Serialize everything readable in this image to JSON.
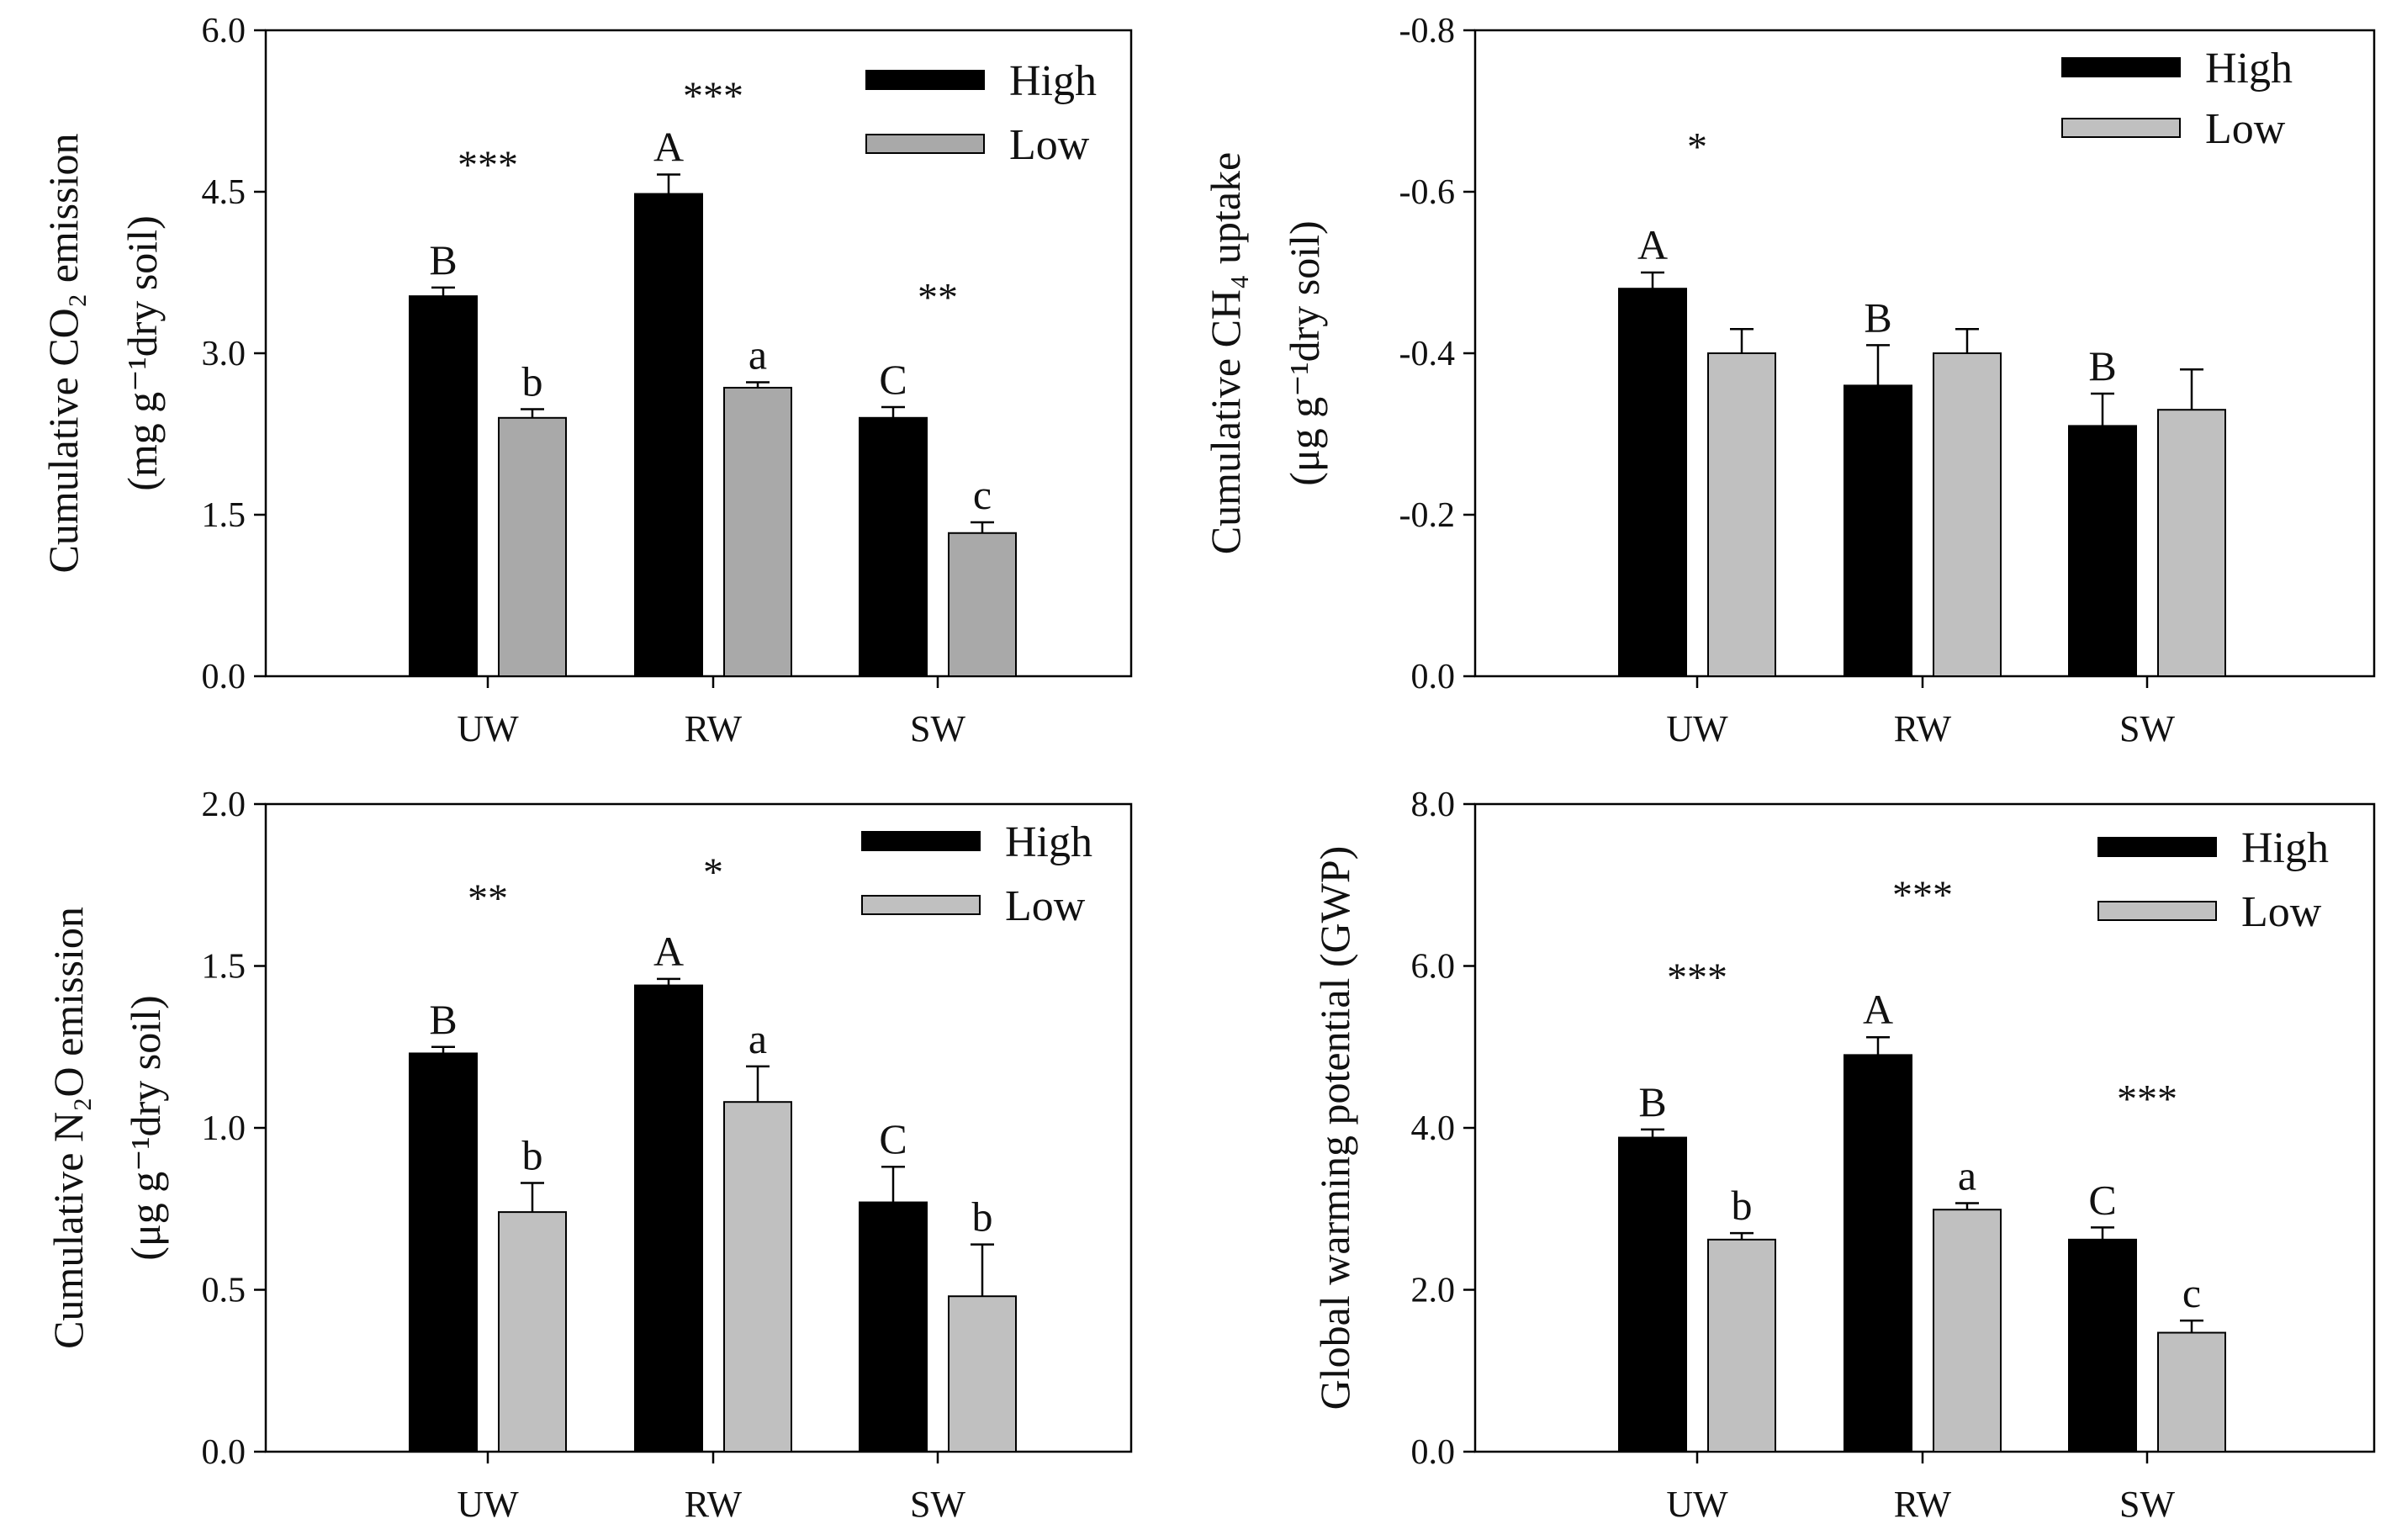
{
  "colors": {
    "high": "#000000",
    "low_co2": "#a9a9a9",
    "low": "#c0c0c0",
    "axis": "#000000"
  },
  "chart_data": [
    {
      "id": "co2",
      "type": "bar",
      "categories": [
        "UW",
        "RW",
        "SW"
      ],
      "ylabel_lines": [
        "Cumulative CO₂ emission",
        "(mg g⁻¹dry soil)"
      ],
      "ylim": [
        0,
        6.0
      ],
      "yticks": [
        "0.0",
        "1.5",
        "3.0",
        "4.5",
        "6.0"
      ],
      "tick_values": [
        0,
        1.5,
        3.0,
        4.5,
        6.0
      ],
      "reversed": false,
      "legend": "top-right",
      "series": [
        {
          "name": "High",
          "values": [
            3.53,
            4.48,
            2.4
          ],
          "errors": [
            0.08,
            0.18,
            0.1
          ],
          "letters": [
            "B",
            "A",
            "C"
          ]
        },
        {
          "name": "Low",
          "values": [
            2.4,
            2.68,
            1.33
          ],
          "errors": [
            0.08,
            0.05,
            0.1
          ],
          "letters": [
            "b",
            "a",
            "c"
          ]
        }
      ],
      "significance": [
        {
          "text": "***",
          "category": "UW",
          "y": 4.78
        },
        {
          "text": "***",
          "category": "RW",
          "y": 5.42
        },
        {
          "text": "**",
          "category": "SW",
          "y": 3.55
        }
      ]
    },
    {
      "id": "ch4",
      "type": "bar",
      "categories": [
        "UW",
        "RW",
        "SW"
      ],
      "ylabel_lines": [
        "Cumulative CH₄ uptake",
        "(μg g⁻¹dry soil)"
      ],
      "ylim": [
        0,
        -0.8
      ],
      "yticks": [
        "0.0",
        "-0.2",
        "-0.4",
        "-0.6",
        "-0.8"
      ],
      "tick_values": [
        0,
        -0.2,
        -0.4,
        -0.6,
        -0.8
      ],
      "reversed": true,
      "legend": "top-right",
      "series": [
        {
          "name": "High",
          "values": [
            -0.48,
            -0.36,
            -0.31
          ],
          "errors": [
            0.02,
            0.05,
            0.04
          ],
          "letters": [
            "A",
            "B",
            "B"
          ]
        },
        {
          "name": "Low",
          "values": [
            -0.4,
            -0.4,
            -0.33
          ],
          "errors": [
            0.03,
            0.03,
            0.05
          ],
          "letters": [
            "",
            "",
            ""
          ]
        }
      ],
      "significance": [
        {
          "text": "*",
          "category": "UW",
          "y": -0.66
        }
      ]
    },
    {
      "id": "n2o",
      "type": "bar",
      "categories": [
        "UW",
        "RW",
        "SW"
      ],
      "ylabel_lines": [
        "Cumulative N₂O emission",
        "(μg g⁻¹dry soil)"
      ],
      "ylim": [
        0,
        2.0
      ],
      "yticks": [
        "0.0",
        "0.5",
        "1.0",
        "1.5",
        "2.0"
      ],
      "tick_values": [
        0,
        0.5,
        1.0,
        1.5,
        2.0
      ],
      "reversed": false,
      "legend": "top-right",
      "series": [
        {
          "name": "High",
          "values": [
            1.23,
            1.44,
            0.77
          ],
          "errors": [
            0.02,
            0.02,
            0.11
          ],
          "letters": [
            "B",
            "A",
            "C"
          ]
        },
        {
          "name": "Low",
          "values": [
            0.74,
            1.08,
            0.48
          ],
          "errors": [
            0.09,
            0.11,
            0.16
          ],
          "letters": [
            "b",
            "a",
            "b"
          ]
        }
      ],
      "significance": [
        {
          "text": "**",
          "category": "UW",
          "y": 1.72
        },
        {
          "text": "*",
          "category": "RW",
          "y": 1.8
        }
      ]
    },
    {
      "id": "gwp",
      "type": "bar",
      "categories": [
        "UW",
        "RW",
        "SW"
      ],
      "ylabel_lines": [
        "Global warming potential (GWP)"
      ],
      "ylim": [
        0,
        8.0
      ],
      "yticks": [
        "0.0",
        "2.0",
        "4.0",
        "6.0",
        "8.0"
      ],
      "tick_values": [
        0,
        2.0,
        4.0,
        6.0,
        8.0
      ],
      "reversed": false,
      "legend": "top-right",
      "series": [
        {
          "name": "High",
          "values": [
            3.88,
            4.9,
            2.62
          ],
          "errors": [
            0.1,
            0.22,
            0.15
          ],
          "letters": [
            "B",
            "A",
            "C"
          ]
        },
        {
          "name": "Low",
          "values": [
            2.62,
            2.99,
            1.47
          ],
          "errors": [
            0.08,
            0.08,
            0.15
          ],
          "letters": [
            "b",
            "a",
            "c"
          ]
        }
      ],
      "significance": [
        {
          "text": "***",
          "category": "UW",
          "y": 5.9
        },
        {
          "text": "***",
          "category": "RW",
          "y": 6.92
        },
        {
          "text": "***",
          "category": "SW",
          "y": 4.4
        }
      ]
    }
  ]
}
